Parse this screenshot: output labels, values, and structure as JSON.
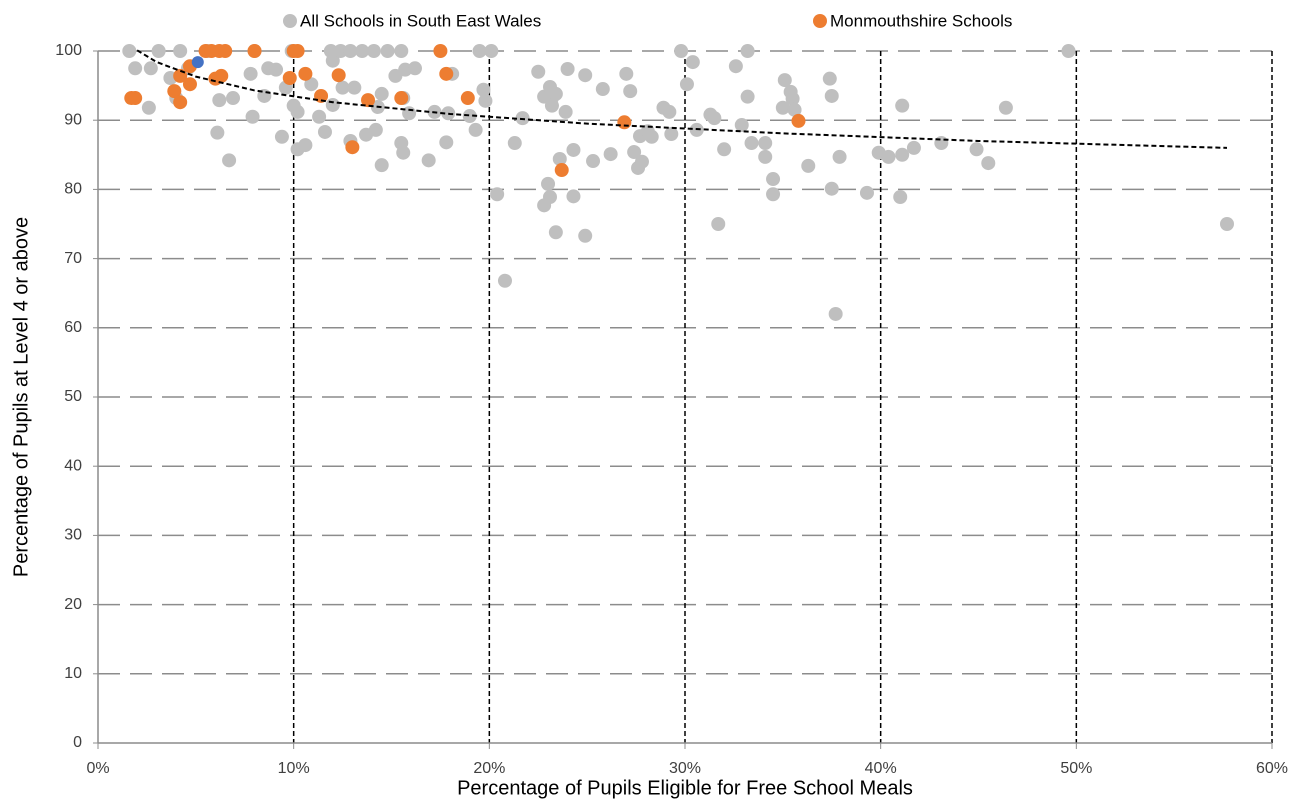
{
  "chart_data": {
    "type": "scatter",
    "x_label": "Percentage of Pupils Eligible for Free School Meals",
    "y_label": "Percentage of Pupils at Level 4 or above",
    "xlim": [
      0,
      60
    ],
    "xticks": [
      {
        "value": 0,
        "label": "0%"
      },
      {
        "value": 10,
        "label": "10%"
      },
      {
        "value": 20,
        "label": "20%"
      },
      {
        "value": 30,
        "label": "30%"
      },
      {
        "value": 40,
        "label": "40%"
      },
      {
        "value": 50,
        "label": "50%"
      },
      {
        "value": 60,
        "label": "60%"
      }
    ],
    "ylim": [
      0,
      100
    ],
    "yticks": [
      0,
      10,
      20,
      30,
      40,
      50,
      60,
      70,
      80,
      90,
      100
    ],
    "grid": true,
    "legend": "top",
    "series": [
      {
        "name": "All Schools in South East Wales",
        "color": "#bfbfbf",
        "x": [
          1.6,
          1.9,
          2.6,
          2.7,
          3.1,
          3.7,
          4.2,
          4.0,
          4.6,
          5.6,
          6.1,
          6.2,
          6.7,
          6.9,
          7.8,
          7.9,
          8.0,
          8.5,
          8.7,
          9.1,
          9.4,
          9.6,
          9.9,
          10.0,
          10.2,
          10.2,
          10.6,
          10.9,
          11.3,
          11.6,
          11.9,
          12.0,
          12.0,
          12.4,
          12.5,
          12.9,
          12.9,
          13.1,
          13.5,
          13.7,
          14.1,
          14.2,
          14.3,
          14.5,
          14.5,
          14.8,
          15.2,
          15.5,
          15.5,
          15.6,
          15.6,
          15.7,
          15.9,
          16.2,
          16.9,
          17.2,
          17.8,
          17.9,
          18.1,
          19.0,
          19.3,
          19.5,
          19.7,
          19.8,
          20.1,
          20.4,
          20.8,
          21.3,
          21.7,
          22.5,
          22.8,
          22.8,
          23.0,
          23.1,
          23.1,
          23.2,
          23.2,
          23.4,
          23.4,
          23.6,
          23.9,
          24.0,
          24.3,
          24.3,
          24.9,
          24.9,
          25.3,
          25.8,
          26.2,
          27.0,
          27.2,
          27.4,
          27.6,
          27.7,
          27.8,
          28.1,
          28.3,
          28.9,
          29.2,
          29.3,
          29.8,
          30.1,
          30.4,
          30.6,
          31.3,
          31.5,
          31.7,
          32.0,
          32.6,
          32.9,
          33.2,
          33.2,
          33.4,
          34.1,
          34.1,
          34.5,
          34.5,
          35.0,
          35.1,
          35.4,
          35.5,
          35.6,
          36.3,
          37.4,
          37.5,
          37.5,
          37.7,
          37.9,
          39.3,
          39.9,
          40.4,
          41.1,
          41.1,
          41.0,
          41.7,
          43.1,
          44.9,
          45.5,
          46.4,
          49.6,
          57.7
        ],
        "y": [
          100,
          97.5,
          91.8,
          97.5,
          100,
          96.1,
          100,
          93.2,
          97.5,
          100,
          88.2,
          92.9,
          84.2,
          93.2,
          96.7,
          90.5,
          100,
          93.5,
          97.5,
          97.3,
          87.6,
          94.7,
          100,
          92.1,
          85.8,
          91.2,
          86.4,
          95.2,
          90.5,
          88.3,
          100,
          98.6,
          92.2,
          100,
          94.7,
          100,
          87.0,
          94.7,
          100,
          87.9,
          100,
          88.6,
          91.9,
          83.5,
          93.8,
          100,
          96.4,
          100,
          86.7,
          85.3,
          93.2,
          97.3,
          91.0,
          97.5,
          84.2,
          91.2,
          86.8,
          91.0,
          96.7,
          90.6,
          88.6,
          100,
          94.4,
          92.8,
          100,
          79.3,
          66.8,
          86.7,
          90.3,
          97.0,
          93.4,
          77.7,
          80.8,
          78.9,
          94.8,
          93.2,
          92.1,
          93.8,
          73.8,
          84.4,
          91.2,
          97.4,
          85.7,
          79.0,
          73.3,
          96.5,
          84.1,
          94.5,
          85.1,
          96.7,
          94.2,
          85.4,
          83.1,
          87.7,
          84.0,
          88.4,
          87.6,
          91.8,
          91.2,
          88.0,
          100,
          95.2,
          98.4,
          88.6,
          90.8,
          90.3,
          75.0,
          85.8,
          97.8,
          89.3,
          93.4,
          100,
          86.7,
          86.7,
          84.7,
          81.5,
          79.3,
          91.8,
          95.8,
          94.1,
          93.1,
          91.5,
          83.4,
          96.0,
          93.5,
          80.1,
          62.0,
          84.7,
          79.5,
          85.3,
          84.7,
          85.0,
          92.1,
          78.9,
          86.0,
          86.7,
          85.8,
          83.8,
          91.8,
          100,
          75.0
        ]
      },
      {
        "name": "Monmouthshire Schools",
        "color": "#ed7d31",
        "x": [
          1.7,
          1.9,
          3.9,
          4.2,
          4.2,
          4.7,
          4.7,
          5.5,
          5.8,
          6.0,
          6.2,
          6.3,
          6.5,
          8.0,
          9.8,
          10.0,
          10.2,
          10.6,
          11.4,
          12.3,
          13.0,
          13.8,
          15.5,
          17.5,
          17.8,
          18.9,
          23.7,
          26.9,
          35.8
        ],
        "y": [
          93.2,
          93.2,
          94.2,
          92.6,
          96.4,
          97.8,
          95.2,
          100,
          100,
          96.0,
          100,
          96.4,
          100,
          100,
          96.1,
          100,
          100,
          96.7,
          93.5,
          96.5,
          86.1,
          92.9,
          93.2,
          100,
          96.7,
          93.2,
          82.8,
          89.7,
          89.9
        ]
      }
    ],
    "highlight": {
      "color": "#4472c4",
      "x": [
        5.1
      ],
      "y": [
        98.4
      ]
    },
    "trendline": {
      "color": "#000000",
      "x": [
        2,
        3,
        5,
        8,
        12,
        18,
        25,
        35,
        45,
        57.7
      ],
      "y": [
        100.1,
        98.4,
        96.3,
        94.3,
        92.6,
        90.9,
        89.5,
        88.1,
        87.0,
        86.0
      ]
    }
  }
}
